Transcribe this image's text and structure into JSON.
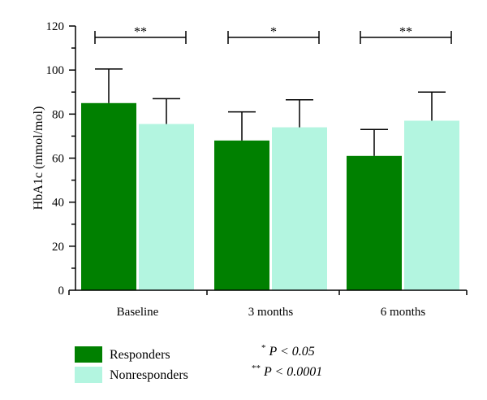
{
  "chart_data": {
    "type": "bar",
    "categories": [
      "Baseline",
      "3 months",
      "6 months"
    ],
    "ylabel": "HbA1c (mmol/mol)",
    "ylim": [
      0,
      120
    ],
    "yticks": [
      0,
      20,
      40,
      60,
      80,
      100,
      120
    ],
    "series": [
      {
        "name": "Responders",
        "color": "#008000",
        "values": [
          85,
          68,
          61
        ],
        "errors": [
          15.5,
          13,
          12
        ]
      },
      {
        "name": "Nonresponders",
        "color": "#b3f5e0",
        "values": [
          75.5,
          74,
          77
        ],
        "errors": [
          11.5,
          12.5,
          13
        ]
      }
    ],
    "significance": [
      "**",
      "*",
      "**"
    ],
    "legend_position": "bottom-left",
    "notes": [
      {
        "stars": "*",
        "text": "P < 0.05"
      },
      {
        "stars": "**",
        "text": "P < 0.0001"
      }
    ],
    "grid": false
  }
}
